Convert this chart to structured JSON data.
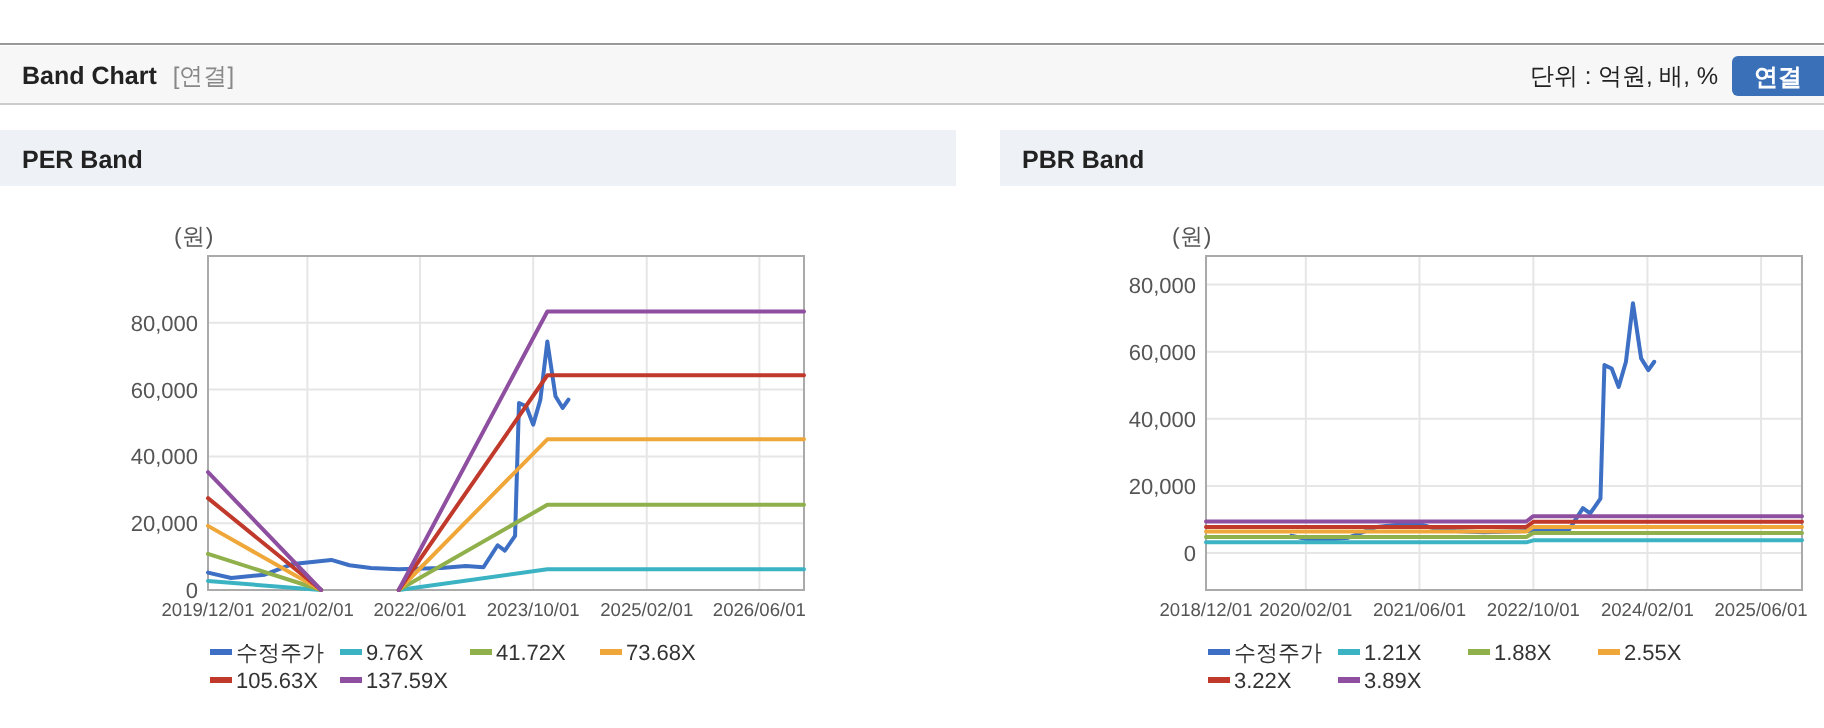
{
  "chart_data": [
    {
      "type": "line",
      "title": "PER Band",
      "ylabel": "(원)",
      "annotations": [
        "Band Chart",
        "[연결]",
        "단위 : 억원, 배, %",
        "연결"
      ],
      "xlim": [
        "2019-12-01",
        "2026-12-10"
      ],
      "xticks": [
        {
          "value": "2019-12-01",
          "label": "2019/12/01"
        },
        {
          "value": "2021-02-01",
          "label": "2021/02/01"
        },
        {
          "value": "2022-06-01",
          "label": "2022/06/01"
        },
        {
          "value": "2023-10-01",
          "label": "2023/10/01"
        },
        {
          "value": "2025-02-01",
          "label": "2025/02/01"
        },
        {
          "value": "2026-06-01",
          "label": "2026/06/01"
        }
      ],
      "ylim": [
        0,
        100000
      ],
      "yticks": [
        0,
        {
          "value": 20000,
          "label": "20,000"
        },
        {
          "value": 40000,
          "label": "40,000"
        },
        {
          "value": 60000,
          "label": "60,000"
        },
        {
          "value": 80000,
          "label": "80,000"
        }
      ],
      "grid": true,
      "legend": "bottom",
      "series": [
        {
          "name": "수정주가",
          "color": "#3d6fc4",
          "x": [
            "2019-12-01",
            "2020-03-10",
            "2020-08-01",
            "2020-12-01",
            "2021-05-15",
            "2021-08-01",
            "2021-11-01",
            "2022-03-01",
            "2022-09-01",
            "2022-12-15",
            "2023-03-01",
            "2023-05-01",
            "2023-06-01",
            "2023-07-15",
            "2023-08-01",
            "2023-09-01",
            "2023-10-01",
            "2023-11-01",
            "2023-12-01",
            "2024-01-05",
            "2024-02-05",
            "2024-03-01"
          ],
          "values": [
            5200,
            3600,
            4600,
            7800,
            9000,
            7400,
            6600,
            6200,
            6600,
            7200,
            6800,
            13400,
            11800,
            16200,
            56000,
            55000,
            49500,
            57000,
            74400,
            58000,
            54500,
            57000
          ]
        },
        {
          "name": "9.76X",
          "color": "#3bb3c3",
          "x": [
            "2019-12-01",
            "2021-04-01",
            "2021-10-01",
            "2022-03-01",
            "2023-12-01",
            "2026-12-10"
          ],
          "values": [
            2700,
            0,
            null,
            0,
            6200,
            6200
          ]
        },
        {
          "name": "41.72X",
          "color": "#8fb04a",
          "x": [
            "2019-12-01",
            "2021-04-01",
            "2021-10-01",
            "2022-03-01",
            "2023-12-01",
            "2026-12-10"
          ],
          "values": [
            10800,
            0,
            null,
            0,
            25500,
            25500
          ]
        },
        {
          "name": "73.68X",
          "color": "#f0a73a",
          "x": [
            "2019-12-01",
            "2021-04-01",
            "2021-10-01",
            "2022-03-01",
            "2023-12-01",
            "2026-12-10"
          ],
          "values": [
            19200,
            0,
            null,
            0,
            45100,
            45100
          ]
        },
        {
          "name": "105.63X",
          "color": "#c0392b",
          "x": [
            "2019-12-01",
            "2021-04-01",
            "2021-10-01",
            "2022-03-01",
            "2023-12-01",
            "2026-12-10"
          ],
          "values": [
            27500,
            0,
            null,
            0,
            64300,
            64300
          ]
        },
        {
          "name": "137.59X",
          "color": "#8e4fa0",
          "x": [
            "2019-12-01",
            "2021-04-01",
            "2021-10-01",
            "2022-03-01",
            "2023-12-01",
            "2026-12-10"
          ],
          "values": [
            35300,
            0,
            null,
            0,
            83400,
            83400
          ]
        }
      ]
    },
    {
      "type": "line",
      "title": "PBR Band",
      "ylabel": "(원)",
      "xlim": [
        "2018-12-01",
        "2025-11-23"
      ],
      "xticks": [
        {
          "value": "2018-12-01",
          "label": "2018/12/01"
        },
        {
          "value": "2020-02-01",
          "label": "2020/02/01"
        },
        {
          "value": "2021-06-01",
          "label": "2021/06/01"
        },
        {
          "value": "2022-10-01",
          "label": "2022/10/01"
        },
        {
          "value": "2024-02-01",
          "label": "2024/02/01"
        },
        {
          "value": "2025-06-01",
          "label": "2025/06/01"
        }
      ],
      "ylim": [
        -11000,
        88500
      ],
      "yticks": [
        0,
        {
          "value": 20000,
          "label": "20,000"
        },
        {
          "value": 40000,
          "label": "40,000"
        },
        {
          "value": 60000,
          "label": "60,000"
        },
        {
          "value": 80000,
          "label": "80,000"
        }
      ],
      "grid": true,
      "legend": "bottom",
      "series": [
        {
          "name": "수정주가",
          "color": "#3d6fc4",
          "x": [
            "2019-12-01",
            "2020-03-10",
            "2020-08-01",
            "2020-12-01",
            "2021-05-15",
            "2021-08-01",
            "2021-11-01",
            "2022-03-01",
            "2022-09-01",
            "2022-12-15",
            "2023-03-01",
            "2023-05-01",
            "2023-06-01",
            "2023-07-15",
            "2023-08-01",
            "2023-09-01",
            "2023-10-01",
            "2023-11-01",
            "2023-12-01",
            "2024-01-05",
            "2024-02-05",
            "2024-03-01"
          ],
          "values": [
            5200,
            3600,
            4600,
            7800,
            9000,
            7400,
            6600,
            6200,
            6600,
            7200,
            6800,
            13400,
            11800,
            16200,
            56000,
            55000,
            49500,
            57000,
            74400,
            58000,
            54500,
            57000
          ]
        },
        {
          "name": "1.21X",
          "color": "#3bb3c3",
          "x": [
            "2018-12-01",
            "2022-09-01",
            "2022-10-01",
            "2025-11-23"
          ],
          "values": [
            3200,
            3200,
            3800,
            3800
          ]
        },
        {
          "name": "1.88X",
          "color": "#8fb04a",
          "x": [
            "2018-12-01",
            "2022-09-01",
            "2022-10-01",
            "2025-11-23"
          ],
          "values": [
            4800,
            4800,
            6000,
            6000
          ]
        },
        {
          "name": "2.55X",
          "color": "#f0a73a",
          "x": [
            "2018-12-01",
            "2022-09-01",
            "2022-10-01",
            "2025-11-23"
          ],
          "values": [
            6400,
            6400,
            7800,
            7800
          ]
        },
        {
          "name": "3.22X",
          "color": "#c0392b",
          "x": [
            "2018-12-01",
            "2022-09-01",
            "2022-10-01",
            "2025-11-23"
          ],
          "values": [
            7800,
            7800,
            9300,
            9300
          ]
        },
        {
          "name": "3.89X",
          "color": "#8e4fa0",
          "x": [
            "2018-12-01",
            "2022-09-01",
            "2022-10-01",
            "2025-11-23"
          ],
          "values": [
            9400,
            9400,
            11000,
            11000
          ]
        }
      ]
    }
  ]
}
